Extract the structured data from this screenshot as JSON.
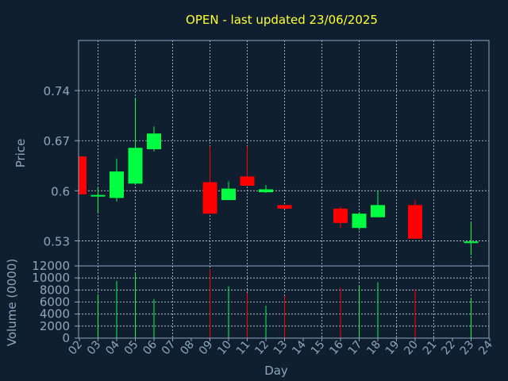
{
  "chart_data": {
    "type": "candlestick",
    "title": "OPEN - last updated 23/06/2025",
    "xlabel": "Day",
    "price_ylabel": "Price",
    "volume_ylabel": "Volume (0000)",
    "price_ylim": [
      0.495,
      0.81
    ],
    "price_ticks": [
      "0.74",
      "0.67",
      "0.6",
      "0.53"
    ],
    "volume_ylim": [
      0,
      12000
    ],
    "volume_ticks": [
      "12000",
      "10000",
      "8000",
      "6000",
      "4000",
      "2000",
      "0"
    ],
    "days": [
      "02",
      "03",
      "04",
      "05",
      "06",
      "07",
      "08",
      "09",
      "10",
      "11",
      "12",
      "13",
      "14",
      "15",
      "16",
      "17",
      "18",
      "19",
      "20",
      "21",
      "22",
      "23",
      "24"
    ],
    "grid": true,
    "up_color": "#00ff40",
    "down_color": "#ff0000",
    "candles": [
      {
        "day": "02",
        "open": 0.648,
        "high": 0.648,
        "low": 0.595,
        "close": 0.595,
        "volume": 0
      },
      {
        "day": "03",
        "open": 0.591,
        "high": 0.605,
        "low": 0.57,
        "close": 0.593,
        "volume": 7300
      },
      {
        "day": "04",
        "open": 0.59,
        "high": 0.645,
        "low": 0.585,
        "close": 0.627,
        "volume": 9500
      },
      {
        "day": "05",
        "open": 0.61,
        "high": 0.73,
        "low": 0.608,
        "close": 0.66,
        "volume": 10800
      },
      {
        "day": "06",
        "open": 0.658,
        "high": 0.69,
        "low": 0.655,
        "close": 0.68,
        "volume": 6500
      },
      {
        "day": "09",
        "open": 0.612,
        "high": 0.662,
        "low": 0.568,
        "close": 0.568,
        "volume": 11500
      },
      {
        "day": "10",
        "open": 0.587,
        "high": 0.613,
        "low": 0.587,
        "close": 0.603,
        "volume": 8600
      },
      {
        "day": "11",
        "open": 0.62,
        "high": 0.662,
        "low": 0.607,
        "close": 0.607,
        "volume": 7500
      },
      {
        "day": "12",
        "open": 0.598,
        "high": 0.608,
        "low": 0.597,
        "close": 0.602,
        "volume": 5400
      },
      {
        "day": "13",
        "open": 0.58,
        "high": 0.58,
        "low": 0.575,
        "close": 0.575,
        "volume": 7000
      },
      {
        "day": "16",
        "open": 0.575,
        "high": 0.578,
        "low": 0.548,
        "close": 0.555,
        "volume": 8400
      },
      {
        "day": "17",
        "open": 0.548,
        "high": 0.57,
        "low": 0.545,
        "close": 0.568,
        "volume": 8600
      },
      {
        "day": "18",
        "open": 0.563,
        "high": 0.6,
        "low": 0.563,
        "close": 0.58,
        "volume": 9300
      },
      {
        "day": "20",
        "open": 0.58,
        "high": 0.588,
        "low": 0.533,
        "close": 0.533,
        "volume": 8100
      },
      {
        "day": "23",
        "open": 0.528,
        "high": 0.555,
        "low": 0.51,
        "close": 0.528,
        "volume": 6700
      }
    ]
  }
}
